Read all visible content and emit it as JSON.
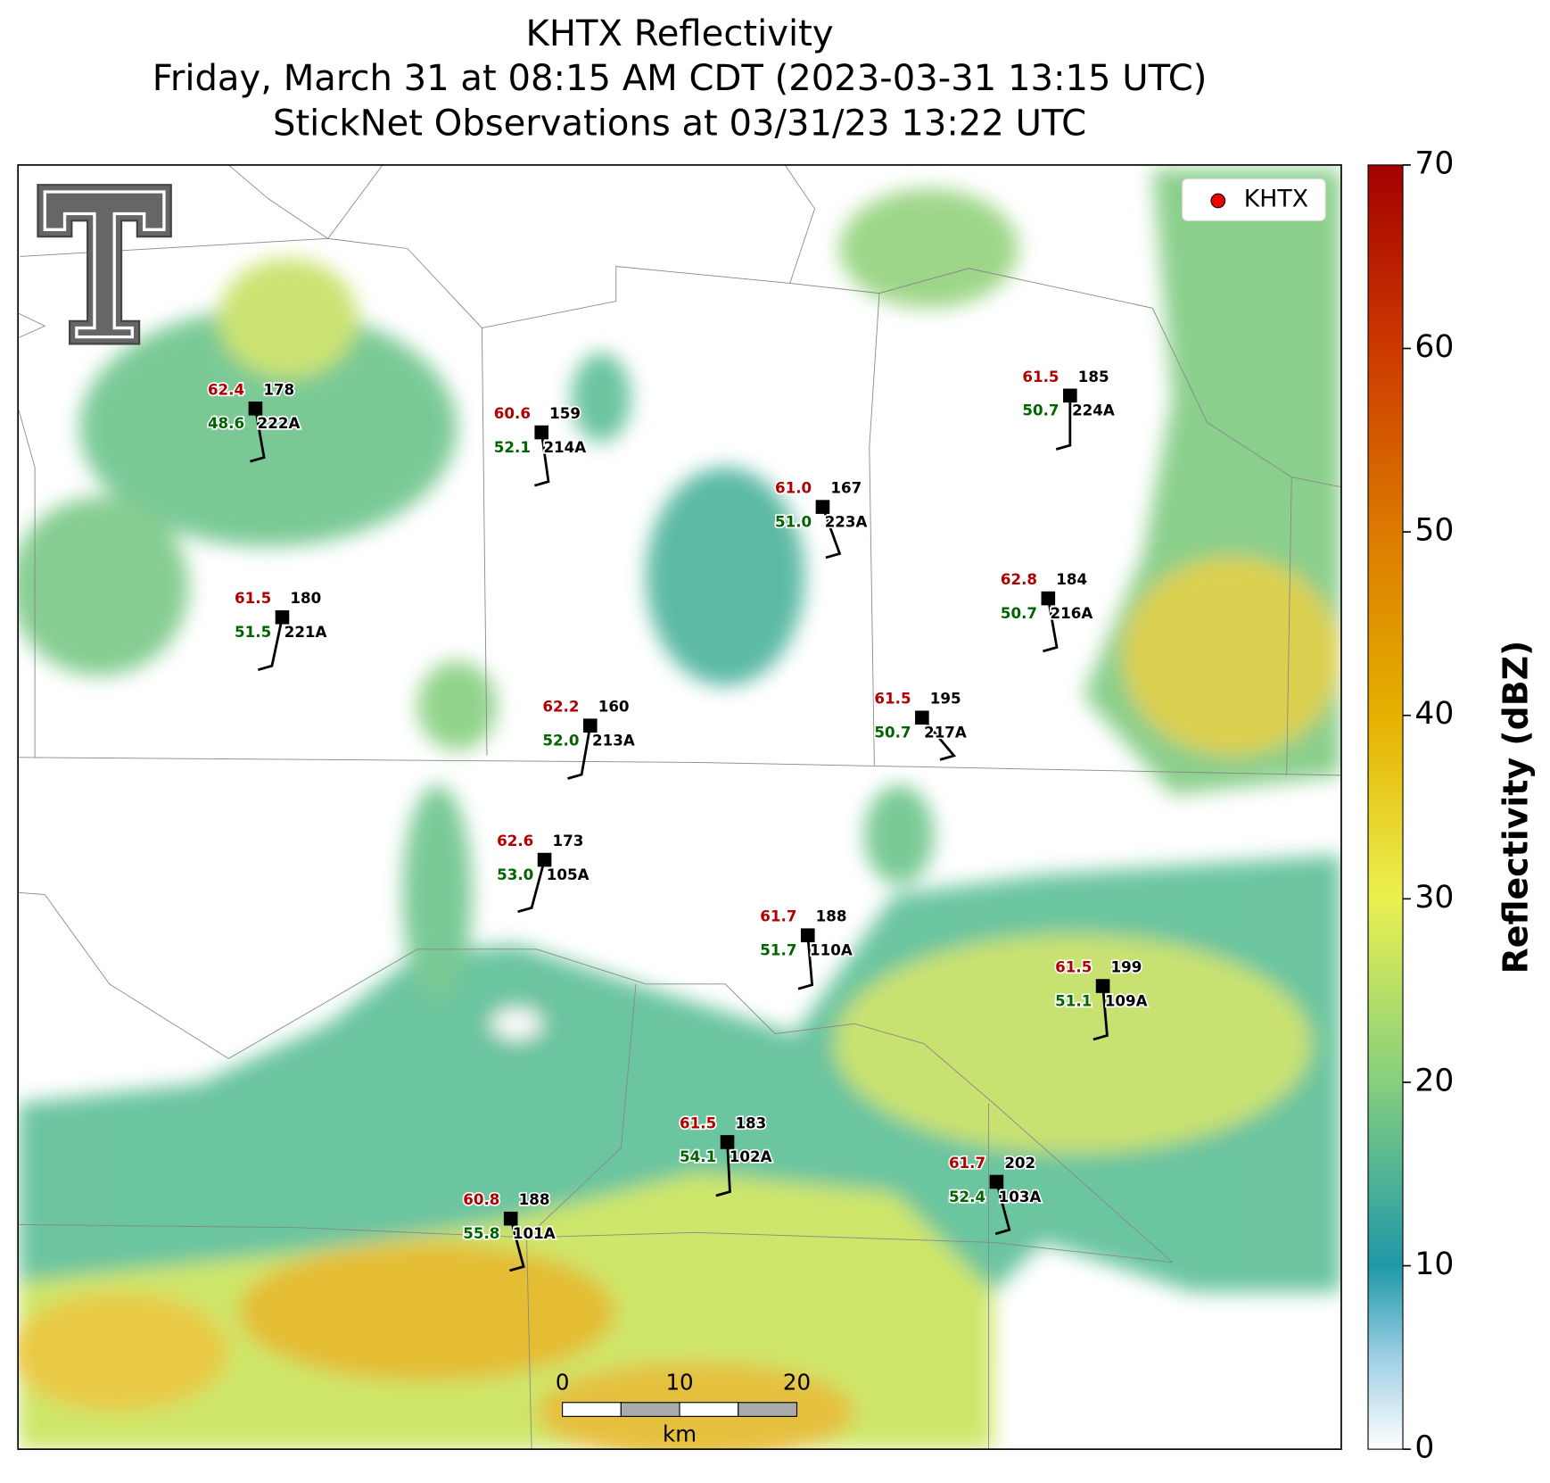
{
  "title": [
    "KHTX Reflectivity",
    "Friday, March 31 at 08:15 AM CDT (2023-03-31 13:15 UTC)",
    "StickNet Observations at 03/31/23 13:22 UTC"
  ],
  "legend": [
    "KHTX"
  ],
  "colorbar": {
    "label": "Reflectivity (dBZ)",
    "lim": [
      0,
      70
    ],
    "ticks": [
      0,
      10,
      20,
      30,
      40,
      50,
      60,
      70
    ]
  },
  "scale_bar": {
    "labels": [
      "0",
      "10",
      "20"
    ],
    "unit": "km"
  },
  "stations": [
    {
      "id": "222A",
      "temp": "62.4",
      "dew": "48.6",
      "value": "178"
    },
    {
      "id": "214A",
      "temp": "60.6",
      "dew": "52.1",
      "value": "159"
    },
    {
      "id": "223A",
      "temp": "61.0",
      "dew": "51.0",
      "value": "167"
    },
    {
      "id": "224A",
      "temp": "61.5",
      "dew": "50.7",
      "value": "185"
    },
    {
      "id": "221A",
      "temp": "61.5",
      "dew": "51.5",
      "value": "180"
    },
    {
      "id": "216A",
      "temp": "62.8",
      "dew": "50.7",
      "value": "184"
    },
    {
      "id": "213A",
      "temp": "62.2",
      "dew": "52.0",
      "value": "160"
    },
    {
      "id": "217A",
      "temp": "61.5",
      "dew": "50.7",
      "value": "195"
    },
    {
      "id": "105A",
      "temp": "62.6",
      "dew": "53.0",
      "value": "173"
    },
    {
      "id": "110A",
      "temp": "61.7",
      "dew": "51.7",
      "value": "188"
    },
    {
      "id": "109A",
      "temp": "61.5",
      "dew": "51.1",
      "value": "199"
    },
    {
      "id": "102A",
      "temp": "61.5",
      "dew": "54.1",
      "value": "183"
    },
    {
      "id": "103A",
      "temp": "61.7",
      "dew": "52.4",
      "value": "202"
    },
    {
      "id": "101A",
      "temp": "60.8",
      "dew": "55.8",
      "value": "188"
    }
  ]
}
